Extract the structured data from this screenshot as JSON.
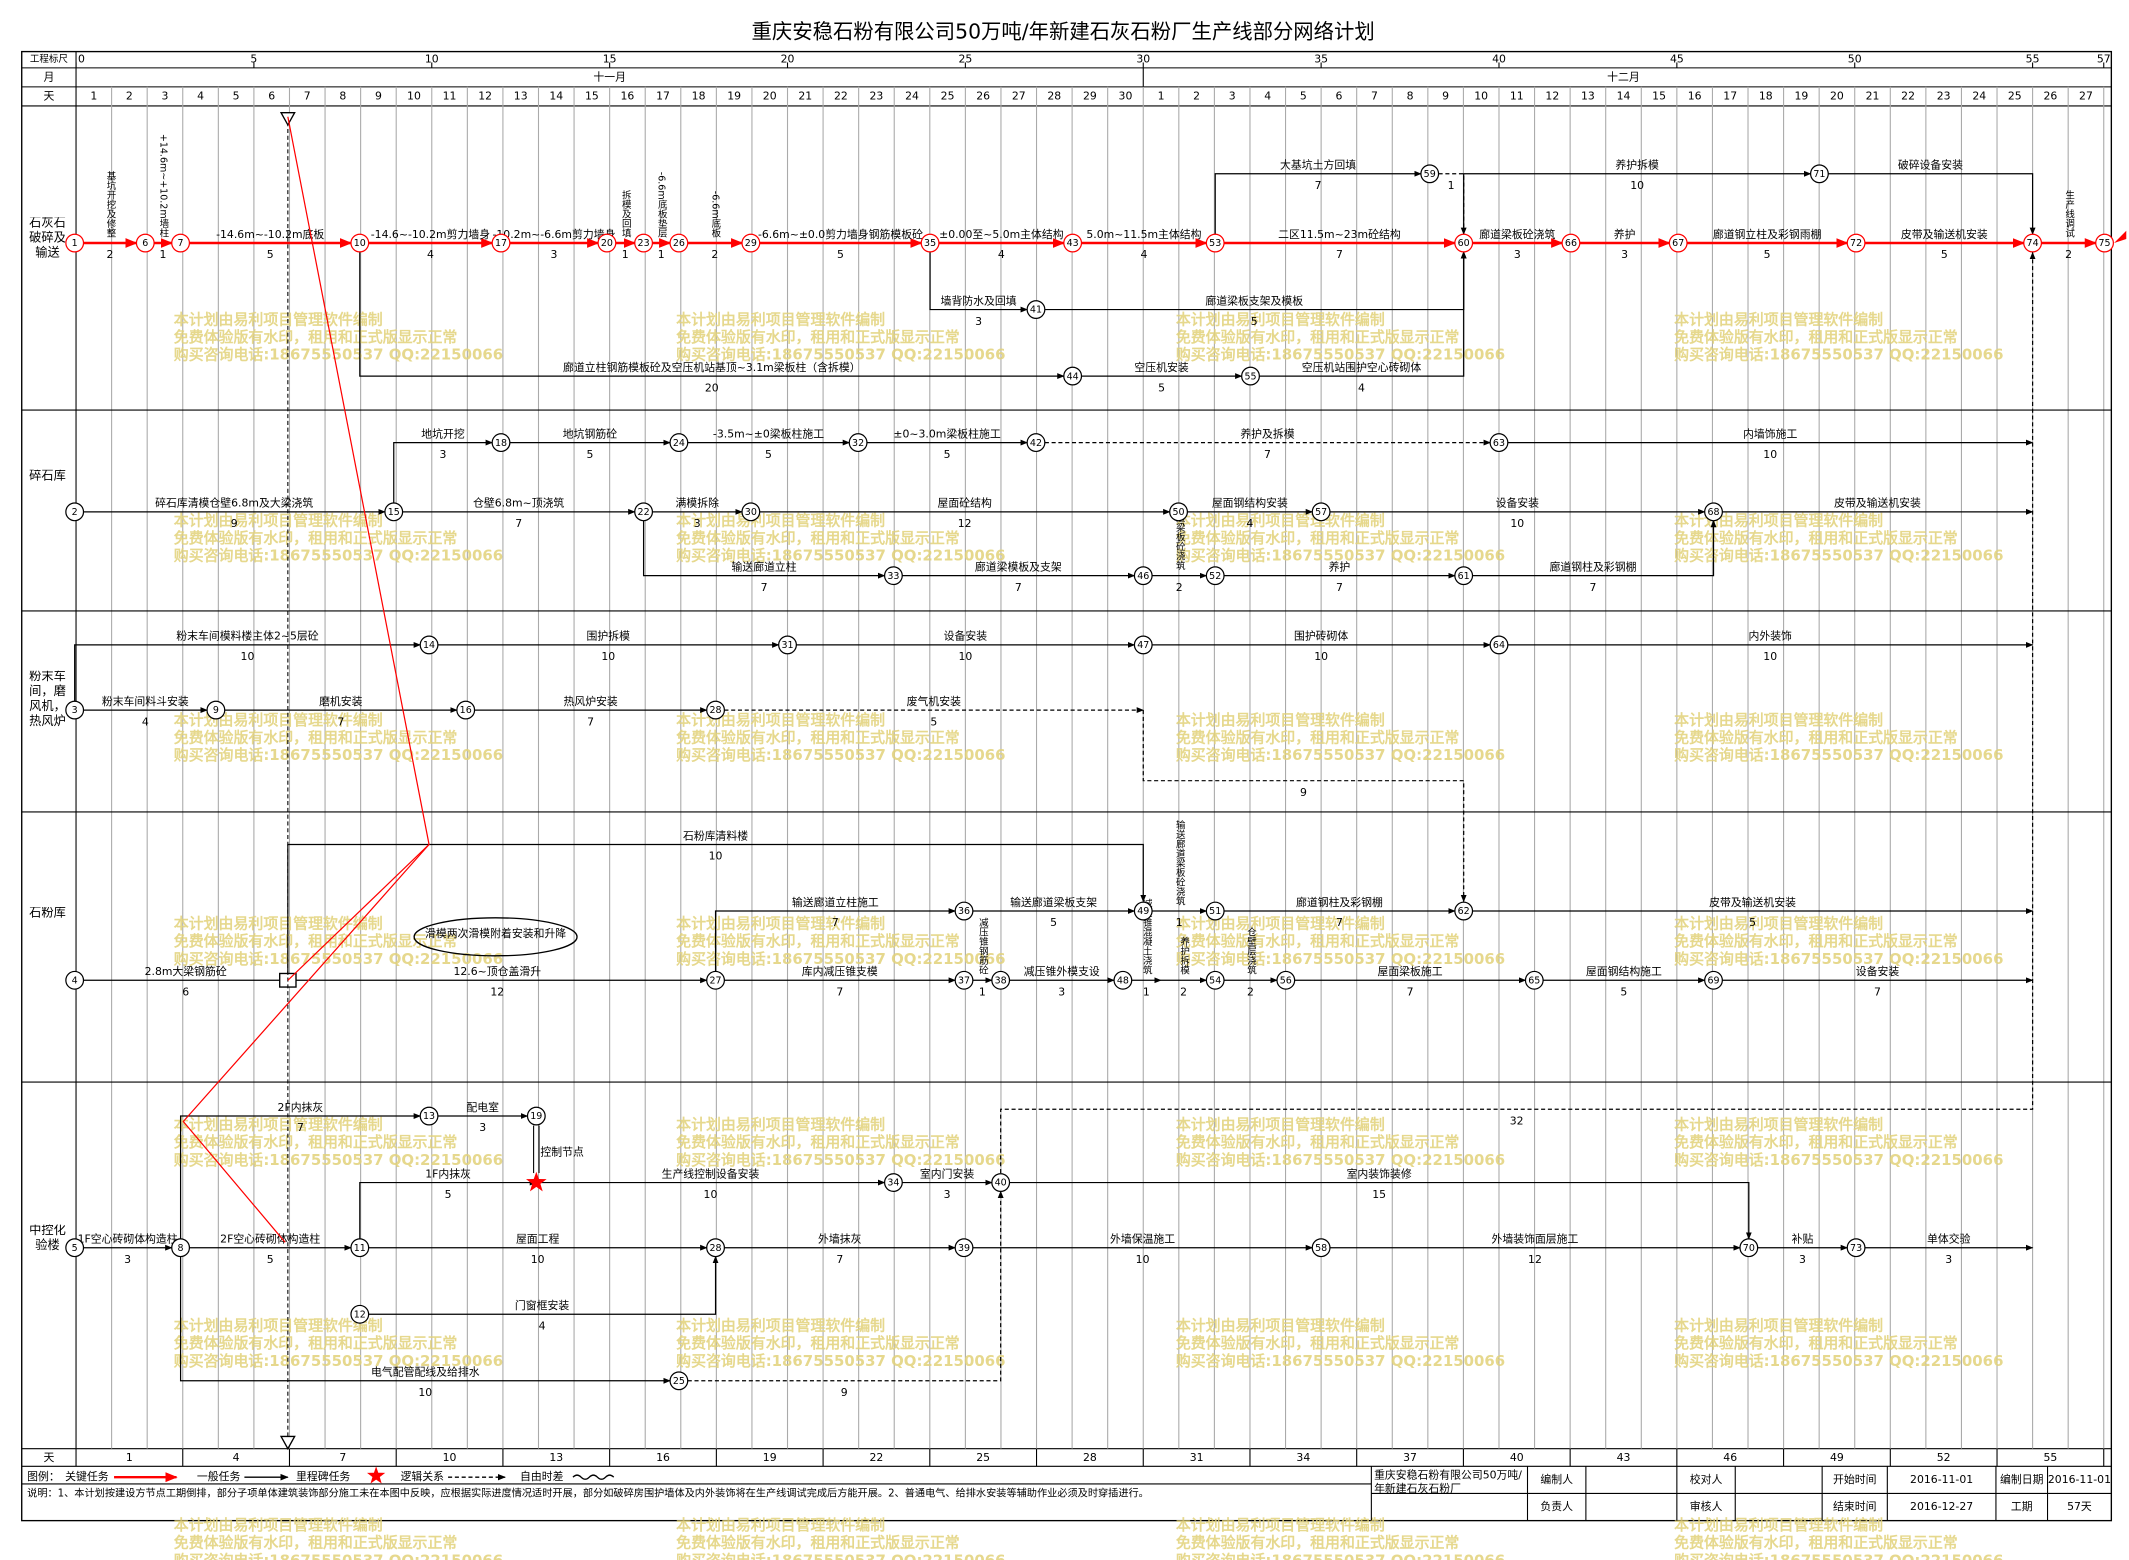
{
  "title": "重庆安稳石粉有限公司50万吨/年新建石灰石粉厂生产线部分网络计划",
  "header": {
    "scale_label": "工程标尺",
    "month_label": "月",
    "day_label": "天",
    "scale_ticks": [
      0,
      5,
      10,
      15,
      20,
      25,
      30,
      35,
      40,
      45,
      50,
      55,
      57
    ],
    "months": [
      "十一月",
      "十二月"
    ],
    "days": [
      1,
      2,
      3,
      4,
      5,
      6,
      7,
      8,
      9,
      10,
      11,
      12,
      13,
      14,
      15,
      16,
      17,
      18,
      19,
      20,
      21,
      22,
      23,
      24,
      25,
      26,
      27,
      28,
      29,
      30,
      1,
      2,
      3,
      4,
      5,
      6,
      7,
      8,
      9,
      10,
      11,
      12,
      13,
      14,
      15,
      16,
      17,
      18,
      19,
      20,
      21,
      22,
      23,
      24,
      25,
      26,
      27
    ]
  },
  "sections": [
    {
      "label": "石灰石破碎及输送",
      "nodes": [
        "1",
        "6",
        "7",
        "10",
        "17",
        "20",
        "23",
        "26",
        "29",
        "35",
        "43",
        "53",
        "60",
        "66",
        "67",
        "72",
        "74",
        "75",
        "59",
        "71",
        "41",
        "44",
        "55"
      ],
      "tasks": [
        {
          "name": "基坑开挖及修整",
          "duration": 2
        },
        {
          "name": "+14.6m~+10.2m墙柱",
          "duration": 1
        },
        {
          "name": "-14.6m~-10.2m底板",
          "duration": 5
        },
        {
          "name": "-14.6~-10.2m剪力墙身",
          "duration": 4
        },
        {
          "name": "-10.2m~-6.6m剪力墙身",
          "duration": 3
        },
        {
          "name": "拆模及回填",
          "duration": 1
        },
        {
          "name": "-6.6m底板垫层",
          "duration": 1
        },
        {
          "name": "-6.6m底板",
          "duration": 2
        },
        {
          "name": "-6.6m~±0.0剪力墙身钢筋模板砼",
          "duration": 5
        },
        {
          "name": "±0.00至~5.0m主体结构",
          "duration": 4
        },
        {
          "name": "5.0m~11.5m主体结构",
          "duration": 4
        },
        {
          "name": "二区11.5m~23m砼结构",
          "duration": 7
        },
        {
          "name": "廊道梁板砼浇筑",
          "duration": 3
        },
        {
          "name": "养护",
          "duration": 3
        },
        {
          "name": "廊道钢立柱及彩钢雨棚",
          "duration": 5
        },
        {
          "name": "皮带及输送机安装",
          "duration": 5
        },
        {
          "name": "生产线调试",
          "duration": 2
        },
        {
          "name": "大基坑土方回填",
          "duration": 7
        },
        {
          "duration": 1
        },
        {
          "name": "养护拆模",
          "duration": 10
        },
        {
          "name": "破碎设备安装"
        },
        {
          "name": "墙背防水及回填",
          "duration": 3
        },
        {
          "name": "廊道梁板支架及模板",
          "duration": 5
        },
        {
          "name": "廊道立柱钢筋模板砼及空压机站基顶~3.1m梁板柱（含拆模）",
          "duration": 20
        },
        {
          "name": "空压机安装",
          "duration": 5
        },
        {
          "name": "空压机站围护空心砖砌体",
          "duration": 4
        }
      ],
      "annotations": []
    },
    {
      "label": "碎石库",
      "nodes": [
        "2",
        "15",
        "18",
        "24",
        "32",
        "42",
        "63",
        "22",
        "30",
        "50",
        "57",
        "68",
        "33",
        "46",
        "52",
        "61"
      ],
      "tasks": [
        {
          "name": "碎石库清模仓壁6.8m及大梁浇筑",
          "duration": 9
        },
        {
          "name": "地坑开挖",
          "duration": 3
        },
        {
          "name": "地坑钢筋砼",
          "duration": 5
        },
        {
          "name": "-3.5m~±0梁板柱施工",
          "duration": 5
        },
        {
          "name": "±0~3.0m梁板柱施工",
          "duration": 5
        },
        {
          "name": "养护及拆模",
          "duration": 7
        },
        {
          "name": "内墙饰施工",
          "duration": 10
        },
        {
          "name": "仓壁6.8m~顶浇筑",
          "duration": 7
        },
        {
          "name": "满模拆除",
          "duration": 3
        },
        {
          "name": "屋面砼结构",
          "duration": 12
        },
        {
          "name": "屋面钢结构安装",
          "duration": 4
        },
        {
          "name": "设备安装",
          "duration": 10
        },
        {
          "name": "皮带及输送机安装"
        },
        {
          "name": "输送廊道立柱",
          "duration": 7
        },
        {
          "name": "廊道梁模板及支架",
          "duration": 7
        },
        {
          "name": "廊道梁板砼浇筑",
          "duration": 2
        },
        {
          "name": "养护",
          "duration": 7
        },
        {
          "name": "廊道钢柱及彩钢棚",
          "duration": 7
        }
      ],
      "annotations": []
    },
    {
      "label": "粉末车间，磨风机，热风炉",
      "nodes": [
        "3",
        "9",
        "16",
        "28",
        "14",
        "31",
        "47",
        "64"
      ],
      "tasks": [
        {
          "name": "粉末车间模料楼主体2~5层砼",
          "duration": 10
        },
        {
          "name": "围护拆模",
          "duration": 10
        },
        {
          "name": "设备安装",
          "duration": 10
        },
        {
          "name": "围护砖砌体",
          "duration": 10
        },
        {
          "name": "内外装饰",
          "duration": 10
        },
        {
          "name": "粉末车间料斗安装",
          "duration": 4
        },
        {
          "name": "磨机安装",
          "duration": 7
        },
        {
          "name": "热风炉安装",
          "duration": 7
        },
        {
          "name": "废气机安装",
          "duration": 5
        },
        {
          "duration": 9
        }
      ],
      "annotations": []
    },
    {
      "label": "石粉库",
      "nodes": [
        "4",
        "27",
        "37",
        "38",
        "48",
        "54",
        "56",
        "65",
        "69",
        "36",
        "49",
        "51",
        "62"
      ],
      "tasks": [
        {
          "name": "2.8m大梁钢筋砼",
          "duration": 6
        },
        {
          "name": "石粉库清料楼",
          "duration": 10
        },
        {
          "name": "12.6~顶仓盖滑升",
          "duration": 12
        },
        {
          "name": "输送廊道立柱施工",
          "duration": 7
        },
        {
          "name": "减压锥钢筋砼",
          "duration": 1
        },
        {
          "name": "输送廊道梁板支架",
          "duration": 5
        },
        {
          "name": "输送廊道梁板砼浇筑",
          "duration": 1
        },
        {
          "name": "廊道钢柱及彩钢棚",
          "duration": 7
        },
        {
          "name": "皮带及输送机安装",
          "duration": 5
        },
        {
          "name": "库内减压锥支模",
          "duration": 7
        },
        {
          "name": "减压锥外模支设",
          "duration": 3
        },
        {
          "name": "减压锥混凝土浇筑",
          "duration": 1
        },
        {
          "name": "养护拆模",
          "duration": 2
        },
        {
          "name": "仓壁层浇筑",
          "duration": 2
        },
        {
          "name": "屋面梁板施工",
          "duration": 7
        },
        {
          "name": "屋面钢结构施工",
          "duration": 5
        },
        {
          "name": "设备安装",
          "duration": 7
        }
      ],
      "annotations": [
        "滑模两次滑模附着安装和升降"
      ]
    },
    {
      "label": "中控化验楼",
      "nodes": [
        "5",
        "8",
        "11",
        "28",
        "39",
        "58",
        "70",
        "73",
        "13",
        "19",
        "12",
        "25",
        "34",
        "40"
      ],
      "tasks": [
        {
          "name": "1F空心砖砌体构造柱",
          "duration": 3
        },
        {
          "name": "2F空心砖砌体构造柱",
          "duration": 5
        },
        {
          "name": "屋面工程",
          "duration": 10
        },
        {
          "name": "外墙抹灰",
          "duration": 7
        },
        {
          "name": "外墙保温施工",
          "duration": 10
        },
        {
          "name": "外墙装饰面层施工",
          "duration": 12
        },
        {
          "name": "补贴",
          "duration": 3
        },
        {
          "name": "单体交验",
          "duration": 3
        },
        {
          "name": "2F内抹灰",
          "duration": 7
        },
        {
          "name": "配电室",
          "duration": 3
        },
        {
          "name": "1F内抹灰",
          "duration": 5
        },
        {
          "name": "生产线控制设备安装",
          "duration": 10
        },
        {
          "name": "室内门安装",
          "duration": 3
        },
        {
          "name": "室内装饰装修",
          "duration": 15
        },
        {
          "name": "门窗框安装",
          "duration": 4
        },
        {
          "name": "电气配管配线及给排水",
          "duration": 10
        },
        {
          "duration": 9
        },
        {
          "duration": 32
        }
      ],
      "annotations": [
        "控制节点"
      ]
    }
  ],
  "bottom_row": {
    "label": "天",
    "days": [
      1,
      4,
      7,
      10,
      13,
      16,
      19,
      22,
      25,
      28,
      31,
      34,
      37,
      40,
      43,
      46,
      49,
      52,
      55
    ]
  },
  "legend": {
    "title": "图例：",
    "items": [
      "关键任务",
      "一般任务",
      "里程碑任务",
      "逻辑关系",
      "自由时差"
    ]
  },
  "notes": "说明：1、本计划按建设方节点工期倒排，部分子项单体建筑装饰部分施工未在本图中反映，应根据实际进度情况适时开展，部分如破碎房围护墙体及内外装饰将在生产线调试完成后方能开展。2、普通电气、给排水安装等辅助作业必须及时穿插进行。",
  "info": {
    "company": "重庆安稳石粉有限公司50万吨/年新建石灰石粉厂",
    "cells": [
      [
        "编制人",
        "",
        "校对人",
        "",
        "开始时间",
        "2016-11-01",
        "编制日期",
        "2016-11-01"
      ],
      [
        "负责人",
        "",
        "审核人",
        "",
        "结束时间",
        "2016-12-27",
        "工期",
        "57天"
      ]
    ]
  },
  "watermark": [
    "本计划由易利项目管理软件编制",
    "免费体验版有水印，租用和正式版显示正常",
    "购买咨询电话:18675550537 QQ:22150066"
  ]
}
